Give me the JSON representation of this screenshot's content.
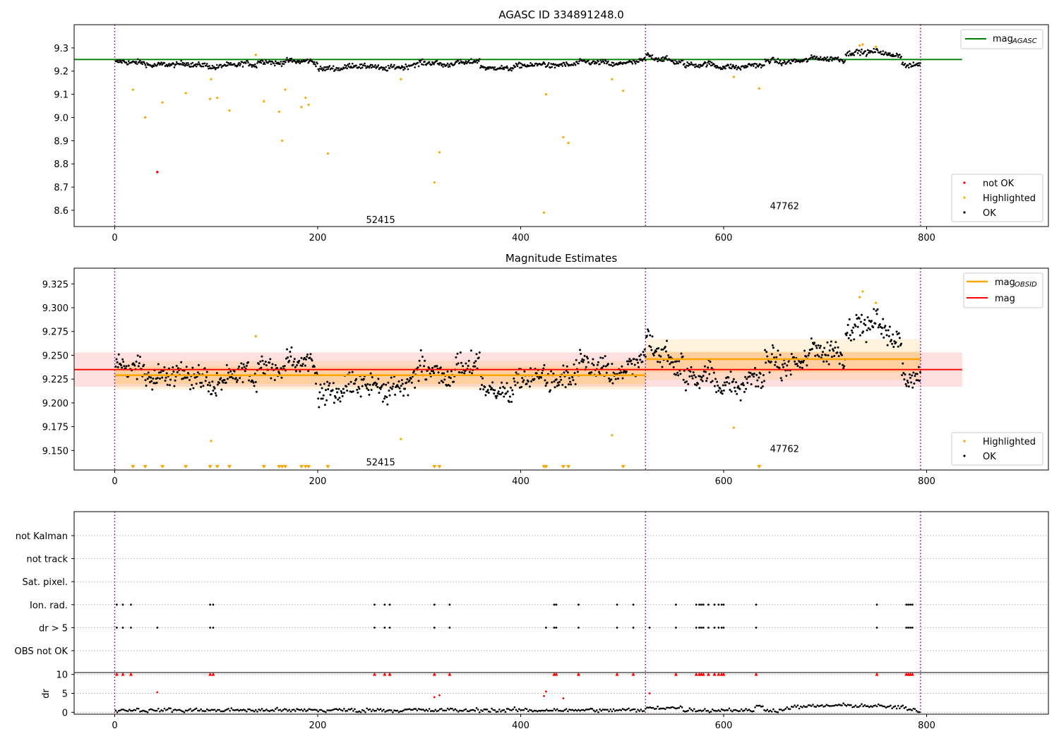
{
  "chart_data": [
    {
      "type": "scatter",
      "title": "AGASC ID 334891248.0",
      "xlabel": "",
      "ylabel": "",
      "xlim": [
        -40,
        920
      ],
      "ylim": [
        8.53,
        9.4
      ],
      "xticks": [
        0,
        200,
        400,
        600,
        800
      ],
      "yticks": [
        8.6,
        8.7,
        8.8,
        8.9,
        9.0,
        9.1,
        9.2,
        9.3
      ],
      "ytick_labels": [
        "8.6",
        "8.7",
        "8.8",
        "8.9",
        "9.0",
        "9.1",
        "9.2",
        "9.3"
      ],
      "boundaries": [
        0,
        523,
        794
      ],
      "obsid_labels": [
        {
          "text": "52415",
          "x": 262,
          "y": 8.56
        },
        {
          "text": "47762",
          "x": 660,
          "y": 8.62
        }
      ],
      "mag_agasc": {
        "y": 9.25,
        "x": [
          -40,
          835
        ],
        "color": "#008000"
      },
      "ok_band_segments": [
        {
          "x0": 0,
          "x1": 60,
          "a": 9.235,
          "b": 9.23
        },
        {
          "x0": 60,
          "x1": 140,
          "a": 9.225,
          "b": 9.225
        },
        {
          "x0": 140,
          "x1": 200,
          "a": 9.245,
          "b": 9.235
        },
        {
          "x0": 200,
          "x1": 300,
          "a": 9.215,
          "b": 9.22
        },
        {
          "x0": 300,
          "x1": 360,
          "a": 9.235,
          "b": 9.235
        },
        {
          "x0": 360,
          "x1": 420,
          "a": 9.215,
          "b": 9.222
        },
        {
          "x0": 420,
          "x1": 523,
          "a": 9.228,
          "b": 9.24
        },
        {
          "x0": 523,
          "x1": 560,
          "a": 9.26,
          "b": 9.245
        },
        {
          "x0": 560,
          "x1": 640,
          "a": 9.225,
          "b": 9.22
        },
        {
          "x0": 640,
          "x1": 720,
          "a": 9.24,
          "b": 9.255
        },
        {
          "x0": 720,
          "x1": 775,
          "a": 9.285,
          "b": 9.27
        },
        {
          "x0": 775,
          "x1": 794,
          "a": 9.235,
          "b": 9.225
        }
      ],
      "not_ok_points": [
        [
          42,
          8.765
        ]
      ],
      "highlighted_points": [
        [
          18,
          9.12
        ],
        [
          30,
          9.0
        ],
        [
          47,
          9.065
        ],
        [
          70,
          9.105
        ],
        [
          94,
          9.08
        ],
        [
          95,
          9.165
        ],
        [
          101,
          9.085
        ],
        [
          113,
          9.03
        ],
        [
          139,
          9.27
        ],
        [
          147,
          9.07
        ],
        [
          162,
          9.025
        ],
        [
          165,
          8.9
        ],
        [
          168,
          9.12
        ],
        [
          184,
          9.045
        ],
        [
          188,
          9.085
        ],
        [
          191,
          9.055
        ],
        [
          210,
          8.845
        ],
        [
          282,
          9.165
        ],
        [
          315,
          8.72
        ],
        [
          320,
          8.85
        ],
        [
          423,
          8.59
        ],
        [
          425,
          9.1
        ],
        [
          442,
          8.915
        ],
        [
          447,
          8.89
        ],
        [
          490,
          9.165
        ],
        [
          501,
          9.115
        ],
        [
          610,
          9.175
        ],
        [
          635,
          9.125
        ],
        [
          734,
          9.31
        ],
        [
          737,
          9.315
        ],
        [
          750,
          9.305
        ]
      ],
      "legend_bottom": [
        "not OK",
        "Highlighted",
        "OK"
      ],
      "legend_top": [
        {
          "label": "mag",
          "sub": "AGASC"
        }
      ]
    },
    {
      "type": "scatter",
      "title": "Magnitude Estimates",
      "xlabel": "",
      "ylabel": "",
      "xlim": [
        -40,
        920
      ],
      "ylim": [
        9.1295,
        9.3415
      ],
      "xticks": [
        0,
        200,
        400,
        600,
        800
      ],
      "yticks": [
        9.15,
        9.175,
        9.2,
        9.225,
        9.25,
        9.275,
        9.3,
        9.325
      ],
      "ytick_labels": [
        "9.150",
        "9.175",
        "9.200",
        "9.225",
        "9.250",
        "9.275",
        "9.300",
        "9.325"
      ],
      "boundaries": [
        0,
        523,
        794
      ],
      "obsid_labels": [
        {
          "text": "52415",
          "x": 262,
          "y": 9.138
        },
        {
          "text": "47762",
          "x": 660,
          "y": 9.152
        }
      ],
      "mag": {
        "y": 9.235,
        "band": [
          9.217,
          9.253
        ],
        "x": [
          -40,
          835
        ],
        "color": "#ff0000"
      },
      "mag_obsid": [
        {
          "x": [
            0,
            523
          ],
          "y": 9.229,
          "band_inner": [
            9.22,
            9.238
          ],
          "band_outer": [
            9.214,
            9.244
          ]
        },
        {
          "x": [
            523,
            794
          ],
          "y": 9.246,
          "band_inner": [
            9.232,
            9.254
          ],
          "band_outer": [
            9.224,
            9.267
          ]
        }
      ],
      "highlighted_points": [
        [
          139,
          9.27
        ],
        [
          95,
          9.16
        ],
        [
          282,
          9.162
        ],
        [
          490,
          9.166
        ],
        [
          610,
          9.174
        ],
        [
          734,
          9.311
        ],
        [
          737,
          9.317
        ],
        [
          750,
          9.305
        ]
      ],
      "below_range_markers": [
        18,
        30,
        47,
        70,
        94,
        101,
        113,
        147,
        162,
        165,
        168,
        184,
        188,
        191,
        210,
        315,
        320,
        423,
        425,
        442,
        447,
        501,
        635
      ],
      "legend_bottom": [
        "Highlighted",
        "OK"
      ],
      "legend_top": [
        {
          "label": "mag",
          "sub": "OBSID"
        },
        {
          "label": "mag",
          "sub": ""
        }
      ]
    },
    {
      "type": "scatter",
      "title": "",
      "xlim": [
        -40,
        920
      ],
      "xticks": [
        0,
        200,
        400,
        600,
        800
      ],
      "boundaries": [
        0,
        523,
        794
      ],
      "flag_rows": [
        "not Kalman",
        "not track",
        "Sat. pixel.",
        "Ion. rad.",
        "dr > 5",
        "OBS not OK"
      ],
      "flags": {
        "Ion. rad.": [
          2,
          8,
          16,
          94,
          97,
          256,
          266,
          271,
          315,
          330,
          433,
          435,
          457,
          495,
          511,
          553,
          573,
          576,
          578,
          580,
          585,
          591,
          595,
          598,
          600,
          632,
          751,
          780,
          782,
          784,
          786
        ],
        "dr > 5": [
          2,
          8,
          16,
          42,
          94,
          97,
          256,
          266,
          271,
          315,
          330,
          425,
          433,
          435,
          457,
          495,
          511,
          527,
          553,
          573,
          576,
          578,
          580,
          585,
          591,
          595,
          598,
          600,
          632,
          751,
          780,
          782,
          784,
          786
        ]
      },
      "dr_panel": {
        "ylabel": "dr",
        "ylim": [
          -0.5,
          10.5
        ],
        "yticks": [
          0,
          5,
          10
        ],
        "over_limit_x": [
          2,
          8,
          16,
          94,
          97,
          256,
          266,
          271,
          315,
          330,
          433,
          435,
          457,
          495,
          511,
          553,
          573,
          576,
          578,
          580,
          585,
          591,
          595,
          598,
          600,
          632,
          751,
          780,
          782,
          784,
          786
        ],
        "red_points": [
          [
            42,
            5.3
          ],
          [
            315,
            4.0
          ],
          [
            320,
            4.5
          ],
          [
            425,
            5.5
          ],
          [
            423,
            4.3
          ],
          [
            442,
            3.7
          ],
          [
            527,
            5.0
          ]
        ]
      }
    }
  ]
}
